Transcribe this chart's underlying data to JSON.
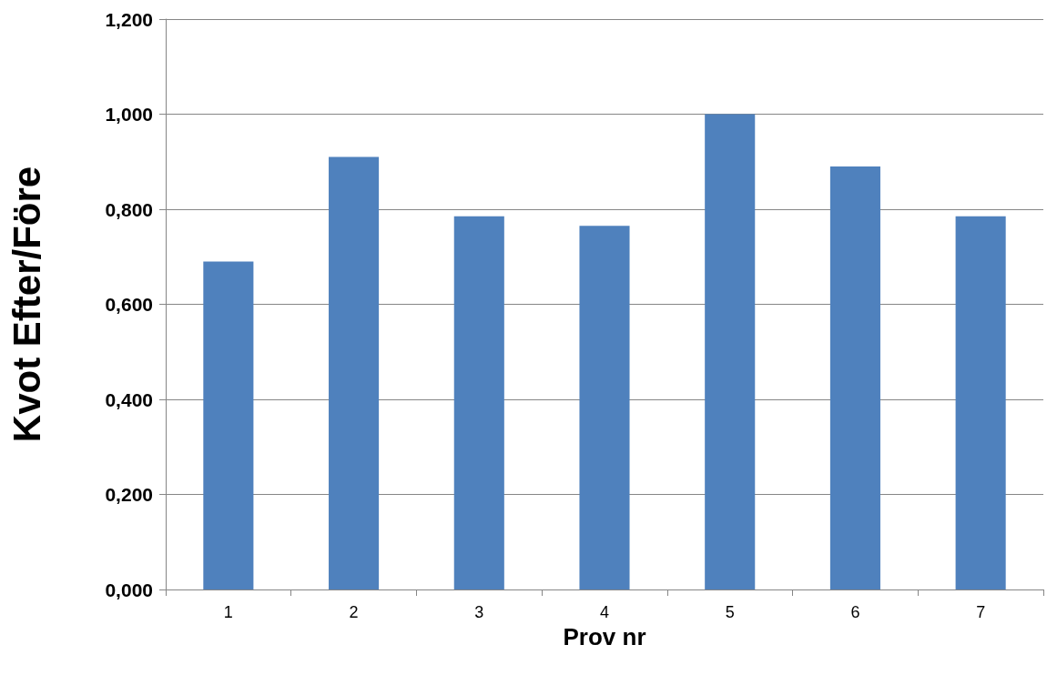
{
  "chart_data": {
    "type": "bar",
    "xlabel": "Prov nr",
    "ylabel": "Kvot Efter/Före",
    "categories": [
      "1",
      "2",
      "3",
      "4",
      "5",
      "6",
      "7"
    ],
    "values": [
      0.69,
      0.91,
      0.785,
      0.765,
      1.0,
      0.89,
      0.785
    ],
    "color": "#4f81bd",
    "ylim": [
      0,
      1.2
    ],
    "yticks": [
      {
        "value": 0,
        "label": "0,000"
      },
      {
        "value": 0.2,
        "label": "0,200"
      },
      {
        "value": 0.4,
        "label": "0,400"
      },
      {
        "value": 0.6,
        "label": "0,600"
      },
      {
        "value": 0.8,
        "label": "0,800"
      },
      {
        "value": 1.0,
        "label": "1,000"
      },
      {
        "value": 1.2,
        "label": "1,200"
      }
    ],
    "grid": "y"
  }
}
